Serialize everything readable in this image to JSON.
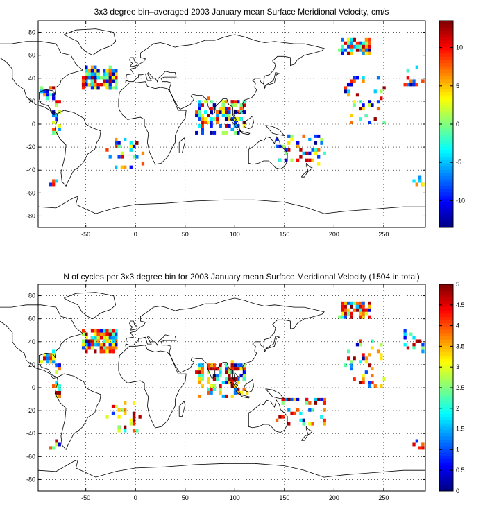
{
  "chart_data": [
    {
      "type": "heatmap",
      "title": "3x3 degree bin–averaged 2003 January mean Surface Meridional Velocity, cm/s",
      "xlabel": "",
      "ylabel": "",
      "xlim": [
        -98,
        292
      ],
      "ylim": [
        -90,
        90
      ],
      "xticks": [
        -50,
        0,
        50,
        100,
        150,
        200,
        250
      ],
      "yticks": [
        -80,
        -60,
        -40,
        -20,
        0,
        20,
        40,
        60,
        80
      ],
      "grid": true,
      "colorbar": {
        "range": [
          -13.5,
          13.5
        ],
        "ticks": [
          -10,
          -5,
          0,
          5,
          10
        ],
        "colormap": "jet"
      },
      "bin_size_deg": 3
    },
    {
      "type": "heatmap",
      "title": "N of cycles per 3x3 degree bin for 2003 January mean Surface Meridional Velocity (1504 in total)",
      "xlabel": "",
      "ylabel": "",
      "xlim": [
        -98,
        292
      ],
      "ylim": [
        -90,
        90
      ],
      "xticks": [
        -50,
        0,
        50,
        100,
        150,
        200,
        250
      ],
      "yticks": [
        -80,
        -60,
        -40,
        -20,
        0,
        20,
        40,
        60,
        80
      ],
      "grid": true,
      "colorbar": {
        "range": [
          0,
          5
        ],
        "ticks": [
          0,
          0.5,
          1,
          1.5,
          2,
          2.5,
          3,
          3.5,
          4,
          4.5,
          5
        ],
        "colormap": "jet"
      },
      "bin_size_deg": 3,
      "total_cycles": 1504
    }
  ]
}
